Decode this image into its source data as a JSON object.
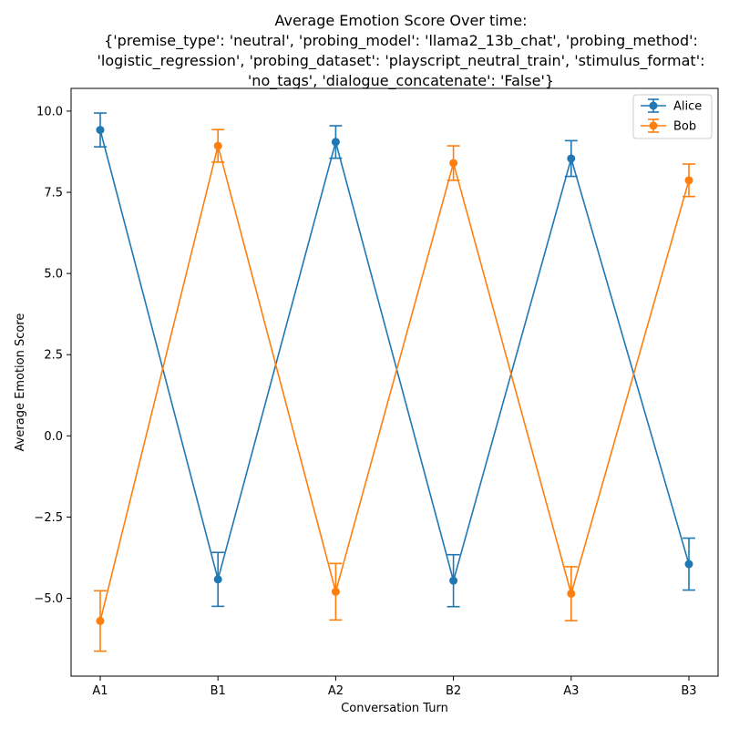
{
  "chart_data": {
    "type": "line",
    "title_lines": [
      "Average Emotion Score Over time:",
      "{'premise_type': 'neutral', 'probing_model': 'llama2_13b_chat', 'probing_method':",
      "'logistic_regression', 'probing_dataset': 'playscript_neutral_train', 'stimulus_format':",
      "'no_tags', 'dialogue_concatenate': 'False'}"
    ],
    "xlabel": "Conversation Turn",
    "ylabel": "Average Emotion Score",
    "categories": [
      "A1",
      "B1",
      "A2",
      "B2",
      "A3",
      "B3"
    ],
    "ylim": [
      -7.4,
      10.7
    ],
    "yticks": [
      -5.0,
      -2.5,
      0.0,
      2.5,
      5.0,
      7.5,
      10.0
    ],
    "ytick_labels": [
      "−5.0",
      "−2.5",
      "0.0",
      "2.5",
      "5.0",
      "7.5",
      "10.0"
    ],
    "grid": false,
    "legend_position": "top-right",
    "series": [
      {
        "name": "Alice",
        "color": "#1f77b4",
        "values": [
          9.42,
          -4.42,
          9.05,
          -4.46,
          8.54,
          -3.95
        ],
        "errors": [
          0.52,
          0.83,
          0.5,
          0.8,
          0.55,
          0.8
        ]
      },
      {
        "name": "Bob",
        "color": "#ff7f0e",
        "values": [
          -5.7,
          8.93,
          -4.8,
          8.4,
          -4.86,
          7.87
        ],
        "errors": [
          0.93,
          0.5,
          0.87,
          0.53,
          0.83,
          0.5
        ]
      }
    ]
  }
}
